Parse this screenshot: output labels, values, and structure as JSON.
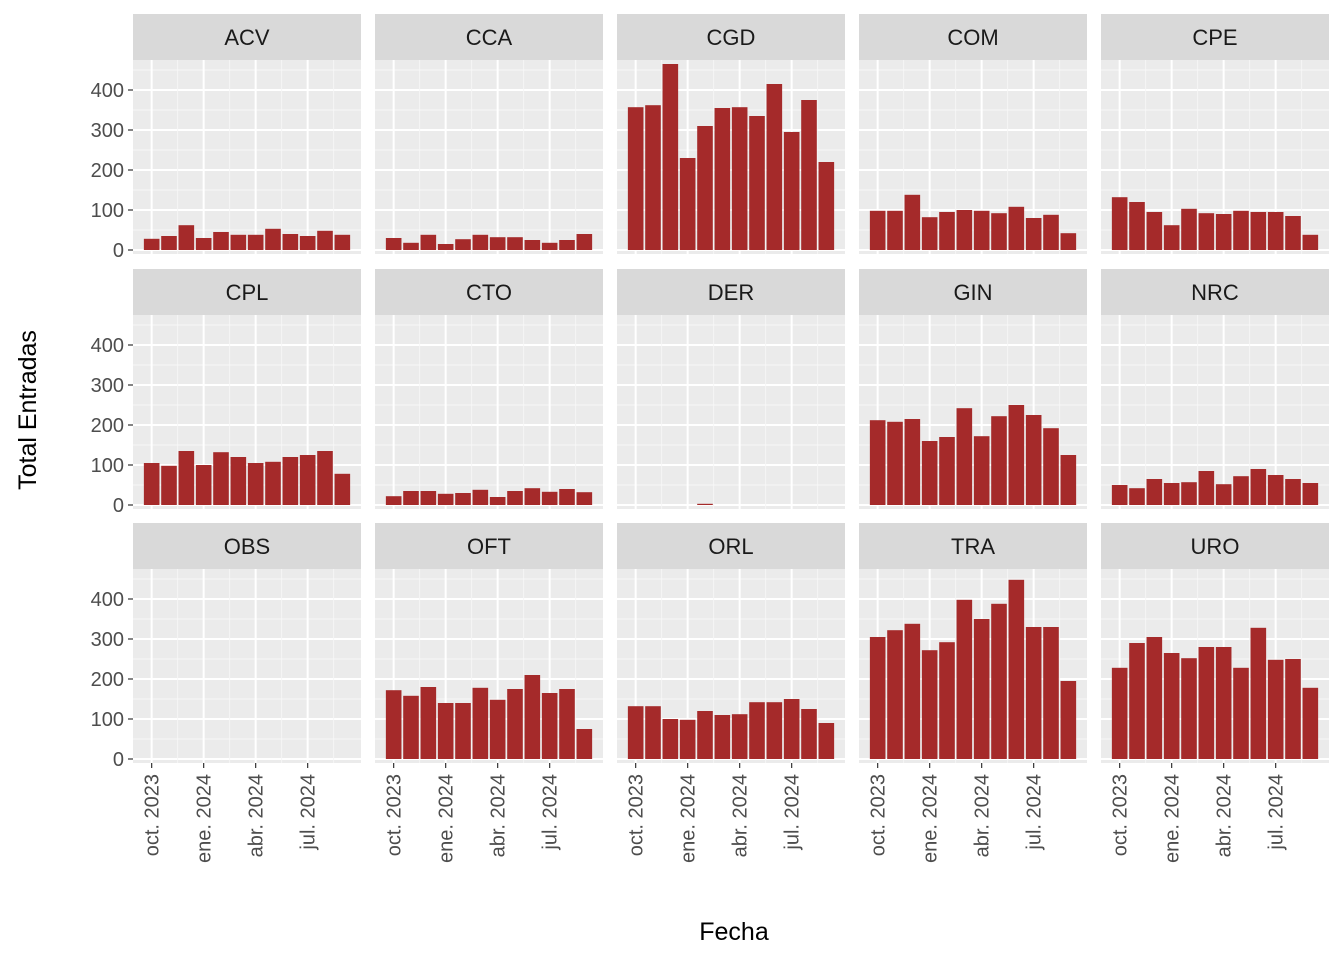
{
  "chart_data": {
    "type": "bar",
    "facet_by": "servicio",
    "xlabel": "Fecha",
    "ylabel": "Total Entradas",
    "ylim": [
      0,
      450
    ],
    "y_ticks": [
      0,
      100,
      200,
      300,
      400
    ],
    "x_ticks": [
      "oct. 2023",
      "ene. 2024",
      "abr. 2024",
      "jul. 2024"
    ],
    "x_tick_month_index": [
      0,
      3,
      6,
      9
    ],
    "months": [
      "2023-09",
      "2023-10",
      "2023-11",
      "2023-12",
      "2024-01",
      "2024-02",
      "2024-03",
      "2024-04",
      "2024-05",
      "2024-06",
      "2024-07",
      "2024-08"
    ],
    "bar_color": "#A52A2A",
    "panel_bg": "#EBEBEB",
    "strip_bg": "#D9D9D9",
    "grid": true,
    "facets": [
      {
        "name": "ACV",
        "values": [
          28,
          35,
          62,
          30,
          45,
          38,
          38,
          53,
          40,
          35,
          48,
          38
        ]
      },
      {
        "name": "CCA",
        "values": [
          30,
          18,
          38,
          15,
          27,
          38,
          32,
          32,
          25,
          18,
          25,
          40
        ]
      },
      {
        "name": "CGD",
        "values": [
          357,
          362,
          465,
          230,
          310,
          355,
          357,
          335,
          415,
          295,
          375,
          220
        ]
      },
      {
        "name": "COM",
        "values": [
          98,
          98,
          138,
          82,
          95,
          100,
          98,
          92,
          108,
          80,
          88,
          42
        ]
      },
      {
        "name": "CPE",
        "values": [
          132,
          120,
          95,
          62,
          103,
          92,
          90,
          98,
          95,
          95,
          85,
          38
        ]
      },
      {
        "name": "CPL",
        "values": [
          105,
          98,
          135,
          100,
          132,
          120,
          105,
          108,
          120,
          125,
          135,
          78
        ]
      },
      {
        "name": "CTO",
        "values": [
          22,
          35,
          35,
          28,
          30,
          38,
          20,
          35,
          42,
          33,
          40,
          32
        ]
      },
      {
        "name": "DER",
        "values": [
          0,
          0,
          0,
          0,
          3,
          0,
          0,
          0,
          0,
          0,
          0,
          0
        ]
      },
      {
        "name": "GIN",
        "values": [
          212,
          208,
          215,
          160,
          170,
          242,
          172,
          222,
          250,
          225,
          192,
          125
        ]
      },
      {
        "name": "NRC",
        "values": [
          50,
          42,
          65,
          55,
          57,
          85,
          52,
          72,
          90,
          75,
          65,
          55
        ]
      },
      {
        "name": "OBS",
        "values": [
          0,
          0,
          0,
          0,
          0,
          0,
          0,
          0,
          0,
          0,
          0,
          0
        ]
      },
      {
        "name": "OFT",
        "values": [
          172,
          158,
          180,
          140,
          140,
          178,
          148,
          175,
          210,
          165,
          175,
          75
        ]
      },
      {
        "name": "ORL",
        "values": [
          132,
          132,
          100,
          98,
          120,
          110,
          112,
          142,
          142,
          150,
          125,
          90
        ]
      },
      {
        "name": "TRA",
        "values": [
          305,
          322,
          338,
          272,
          292,
          398,
          350,
          388,
          448,
          330,
          330,
          195
        ]
      },
      {
        "name": "URO",
        "values": [
          228,
          290,
          305,
          265,
          252,
          280,
          280,
          228,
          328,
          248,
          250,
          178
        ]
      }
    ]
  }
}
